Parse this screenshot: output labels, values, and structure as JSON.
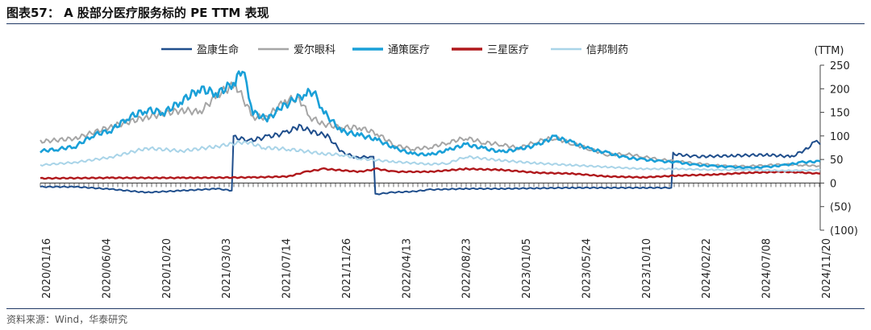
{
  "header": {
    "title": "图表57： A 股部分医疗服务标的 PE TTM 表现"
  },
  "footer": {
    "source": "资料来源：Wind，华泰研究"
  },
  "chart_data": {
    "type": "line",
    "title": "A 股部分医疗服务标的 PE TTM 表现",
    "xlabel": "",
    "ylabel": "(TTM)",
    "ylim": [
      -100,
      250
    ],
    "yticks": [
      "250",
      "200",
      "150",
      "100",
      "50",
      "0",
      "(50)",
      "(100)"
    ],
    "ytick_values": [
      250,
      200,
      150,
      100,
      50,
      0,
      -50,
      -100
    ],
    "legend_position": "top",
    "x_tick_labels": [
      "2020/01/16",
      "2020/06/04",
      "2020/10/20",
      "2021/03/03",
      "2021/07/14",
      "2021/11/26",
      "2022/04/13",
      "2022/08/23",
      "2023/01/05",
      "2023/05/24",
      "2023/10/10",
      "2024/02/22",
      "2024/07/08",
      "2024/11/20"
    ],
    "series": [
      {
        "name": "盈康生命",
        "color": "#1f4e8c",
        "points": [
          [
            0,
            -8
          ],
          [
            1,
            -8
          ],
          [
            2,
            -13
          ],
          [
            3,
            -20
          ],
          [
            4,
            -16
          ],
          [
            5,
            -12
          ],
          [
            5.4,
            -16
          ],
          [
            5.45,
            98
          ],
          [
            5.9,
            90
          ],
          [
            6.4,
            98
          ],
          [
            6.9,
            106
          ],
          [
            7.3,
            120
          ],
          [
            7.7,
            108
          ],
          [
            8.1,
            100
          ],
          [
            8.5,
            66
          ],
          [
            8.9,
            54
          ],
          [
            9.3,
            56
          ],
          [
            9.4,
            56
          ],
          [
            9.45,
            -24
          ],
          [
            9.9,
            -20
          ],
          [
            10.5,
            -18
          ],
          [
            11,
            -14
          ],
          [
            12,
            -12
          ],
          [
            13,
            -12
          ],
          [
            14,
            -11
          ],
          [
            15,
            -10
          ],
          [
            16,
            -10
          ],
          [
            17,
            -10
          ],
          [
            17.8,
            -10
          ],
          [
            17.85,
            62
          ],
          [
            18.5,
            56
          ],
          [
            19.5,
            58
          ],
          [
            20.5,
            60
          ],
          [
            21.2,
            56
          ],
          [
            21.6,
            72
          ],
          [
            21.9,
            90
          ],
          [
            22,
            82
          ]
        ]
      },
      {
        "name": "爱尔眼科",
        "color": "#a6a6a6",
        "points": [
          [
            0,
            88
          ],
          [
            1,
            95
          ],
          [
            2,
            120
          ],
          [
            3,
            140
          ],
          [
            4,
            155
          ],
          [
            4.5,
            150
          ],
          [
            5,
            188
          ],
          [
            5.5,
            210
          ],
          [
            6,
            140
          ],
          [
            6.4,
            140
          ],
          [
            6.9,
            175
          ],
          [
            7.3,
            180
          ],
          [
            7.6,
            140
          ],
          [
            8,
            125
          ],
          [
            8.5,
            118
          ],
          [
            9,
            118
          ],
          [
            9.5,
            105
          ],
          [
            10,
            80
          ],
          [
            10.5,
            72
          ],
          [
            11,
            76
          ],
          [
            11.5,
            86
          ],
          [
            12,
            96
          ],
          [
            12.5,
            86
          ],
          [
            13,
            82
          ],
          [
            13.5,
            74
          ],
          [
            14,
            88
          ],
          [
            14.5,
            96
          ],
          [
            15,
            84
          ],
          [
            15.5,
            72
          ],
          [
            16,
            60
          ],
          [
            16.5,
            62
          ],
          [
            17,
            56
          ],
          [
            17.5,
            50
          ],
          [
            18,
            46
          ],
          [
            18.5,
            42
          ],
          [
            19,
            38
          ],
          [
            19.5,
            36
          ],
          [
            20,
            36
          ],
          [
            20.5,
            38
          ],
          [
            21,
            40
          ],
          [
            21.5,
            38
          ],
          [
            22,
            36
          ]
        ]
      },
      {
        "name": "通策医疗",
        "color": "#1aa0d8",
        "points": [
          [
            0,
            68
          ],
          [
            0.5,
            72
          ],
          [
            1,
            78
          ],
          [
            1.5,
            102
          ],
          [
            2,
            112
          ],
          [
            2.5,
            140
          ],
          [
            3,
            155
          ],
          [
            3.5,
            150
          ],
          [
            4,
            175
          ],
          [
            4.5,
            200
          ],
          [
            5,
            190
          ],
          [
            5.5,
            215
          ],
          [
            5.7,
            245
          ],
          [
            6,
            150
          ],
          [
            6.4,
            135
          ],
          [
            6.8,
            160
          ],
          [
            7.2,
            178
          ],
          [
            7.5,
            190
          ],
          [
            7.7,
            195
          ],
          [
            8,
            150
          ],
          [
            8.5,
            110
          ],
          [
            9,
            102
          ],
          [
            9.5,
            92
          ],
          [
            10,
            74
          ],
          [
            10.5,
            62
          ],
          [
            11,
            60
          ],
          [
            11.5,
            70
          ],
          [
            12,
            82
          ],
          [
            12.5,
            74
          ],
          [
            13,
            66
          ],
          [
            13.5,
            72
          ],
          [
            14,
            80
          ],
          [
            14.5,
            98
          ],
          [
            15,
            86
          ],
          [
            15.5,
            72
          ],
          [
            16,
            64
          ],
          [
            16.5,
            54
          ],
          [
            17,
            50
          ],
          [
            17.5,
            46
          ],
          [
            18,
            44
          ],
          [
            18.5,
            38
          ],
          [
            19,
            36
          ],
          [
            19.5,
            34
          ],
          [
            20,
            32
          ],
          [
            20.5,
            34
          ],
          [
            21,
            38
          ],
          [
            21.5,
            44
          ],
          [
            22,
            46
          ]
        ]
      },
      {
        "name": "三星医疗",
        "color": "#b0181c",
        "points": [
          [
            0,
            10
          ],
          [
            2,
            11
          ],
          [
            4,
            11
          ],
          [
            6,
            12
          ],
          [
            7,
            14
          ],
          [
            7.5,
            24
          ],
          [
            8,
            30
          ],
          [
            9,
            24
          ],
          [
            9.5,
            30
          ],
          [
            10,
            24
          ],
          [
            11,
            24
          ],
          [
            12,
            30
          ],
          [
            13,
            28
          ],
          [
            14,
            22
          ],
          [
            15,
            20
          ],
          [
            16,
            14
          ],
          [
            17,
            12
          ],
          [
            18,
            16
          ],
          [
            19,
            18
          ],
          [
            20,
            22
          ],
          [
            21,
            24
          ],
          [
            21.5,
            22
          ],
          [
            22,
            20
          ]
        ]
      },
      {
        "name": "信邦制药",
        "color": "#a9d4e8",
        "points": [
          [
            0,
            38
          ],
          [
            1,
            44
          ],
          [
            2,
            55
          ],
          [
            3,
            74
          ],
          [
            4,
            68
          ],
          [
            5,
            78
          ],
          [
            5.8,
            88
          ],
          [
            6.3,
            75
          ],
          [
            7,
            72
          ],
          [
            8,
            62
          ],
          [
            8.5,
            60
          ],
          [
            9,
            52
          ],
          [
            10,
            45
          ],
          [
            11,
            40
          ],
          [
            11.5,
            42
          ],
          [
            12,
            56
          ],
          [
            13,
            48
          ],
          [
            14,
            42
          ],
          [
            15,
            38
          ],
          [
            16,
            34
          ],
          [
            17,
            30
          ],
          [
            18,
            30
          ],
          [
            19,
            28
          ],
          [
            20,
            28
          ],
          [
            21,
            26
          ],
          [
            22,
            28
          ]
        ]
      }
    ]
  }
}
